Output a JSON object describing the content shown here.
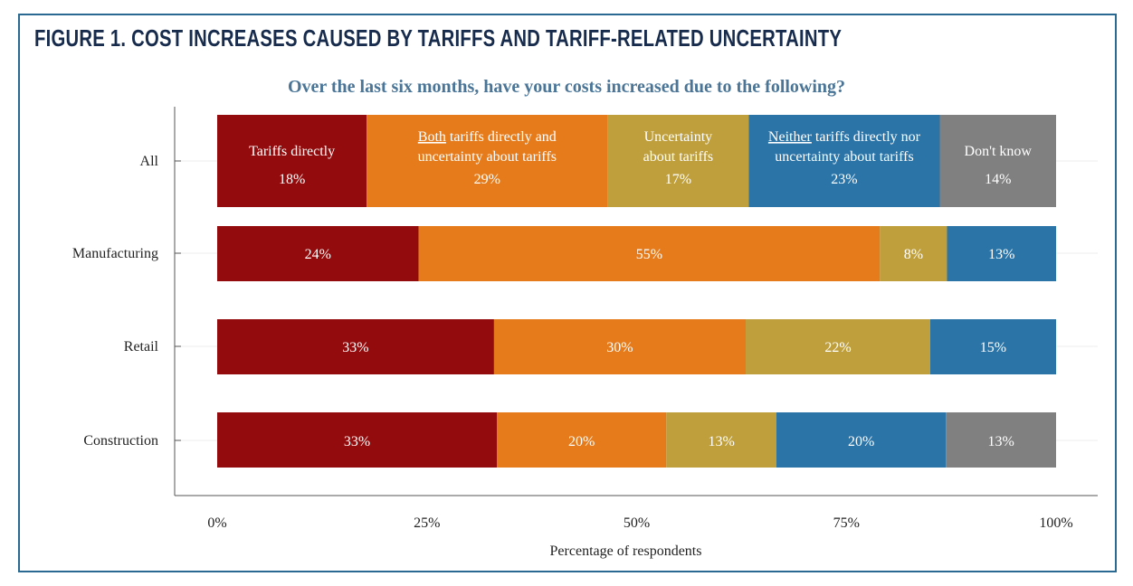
{
  "chart_data": {
    "type": "bar",
    "orientation": "horizontal-stacked",
    "figure_title": "FIGURE 1. COST INCREASES CAUSED BY TARIFFS AND TARIFF-RELATED UNCERTAINTY",
    "title": "Over the last six months, have your costs increased due to the following?",
    "xlabel": "Percentage of respondents",
    "ylabel": "",
    "xlim": [
      0,
      100
    ],
    "xticks": [
      "0%",
      "25%",
      "50%",
      "75%",
      "100%"
    ],
    "categories": [
      "All",
      "Manufacturing",
      "Retail",
      "Construction"
    ],
    "series": [
      {
        "name": "Tariffs directly",
        "name_underlined": "",
        "name_rest": "Tariffs directly",
        "name_line2": "",
        "color": "#930b0c",
        "values": [
          18,
          24,
          33,
          33
        ]
      },
      {
        "name": "Both tariffs directly and uncertainty about tariffs",
        "name_underlined": "Both",
        "name_rest": " tariffs directly and",
        "name_line2": "uncertainty about tariffs",
        "color": "#e57b1a",
        "values": [
          29,
          55,
          30,
          20
        ]
      },
      {
        "name": "Uncertainty about tariffs",
        "name_underlined": "",
        "name_rest": "Uncertainty",
        "name_line2": "about tariffs",
        "color": "#bf9f3b",
        "values": [
          17,
          8,
          22,
          13
        ]
      },
      {
        "name": "Neither tariffs directly nor uncertainty about tariffs",
        "name_underlined": "Neither",
        "name_rest": " tariffs directly nor",
        "name_line2": "uncertainty about tariffs",
        "color": "#2a74a8",
        "values": [
          23,
          13,
          15,
          20
        ]
      },
      {
        "name": "Don't know",
        "name_underlined": "",
        "name_rest": "Don't know",
        "name_line2": "",
        "color": "#808080",
        "values": [
          14,
          0,
          0,
          13
        ]
      }
    ],
    "value_labels": [
      [
        "18%",
        "29%",
        "17%",
        "23%",
        "14%"
      ],
      [
        "24%",
        "55%",
        "8%",
        "13%",
        ""
      ],
      [
        "33%",
        "30%",
        "22%",
        "15%",
        ""
      ],
      [
        "33%",
        "20%",
        "13%",
        "20%",
        "13%"
      ]
    ],
    "grid": true,
    "legend": "inside-first-bar"
  }
}
